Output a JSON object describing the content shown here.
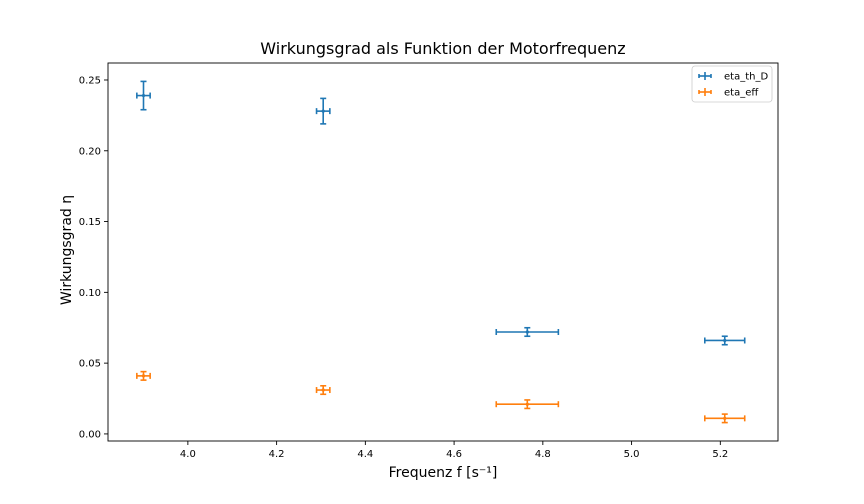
{
  "chart_data": {
    "type": "scatter",
    "title": "Wirkungsgrad als Funktion der Motorfrequenz",
    "xlabel": "Frequenz f [s⁻¹]",
    "ylabel": "Wirkungsgrad η",
    "xlim": [
      3.82,
      5.33
    ],
    "ylim": [
      -0.005,
      0.262
    ],
    "xticks": [
      4.0,
      4.2,
      4.4,
      4.6,
      4.8,
      5.0,
      5.2
    ],
    "xtick_labels": [
      "4.0",
      "4.2",
      "4.4",
      "4.6",
      "4.8",
      "5.0",
      "5.2"
    ],
    "yticks": [
      0.0,
      0.05,
      0.1,
      0.15,
      0.2,
      0.25
    ],
    "ytick_labels": [
      "0.00",
      "0.05",
      "0.10",
      "0.15",
      "0.20",
      "0.25"
    ],
    "grid": false,
    "legend_position": "top-right",
    "series": [
      {
        "name": "eta_th_D",
        "color": "#1f77b4",
        "x": [
          3.9,
          4.305,
          4.765,
          5.21
        ],
        "y": [
          0.239,
          0.228,
          0.072,
          0.066
        ],
        "xerr": [
          0.015,
          0.015,
          0.07,
          0.045
        ],
        "yerr": [
          0.01,
          0.009,
          0.003,
          0.003
        ]
      },
      {
        "name": "eta_eff",
        "color": "#ff7f0e",
        "x": [
          3.9,
          4.305,
          4.765,
          5.21
        ],
        "y": [
          0.041,
          0.031,
          0.021,
          0.011
        ],
        "xerr": [
          0.015,
          0.015,
          0.07,
          0.045
        ],
        "yerr": [
          0.003,
          0.003,
          0.003,
          0.003
        ]
      }
    ]
  }
}
